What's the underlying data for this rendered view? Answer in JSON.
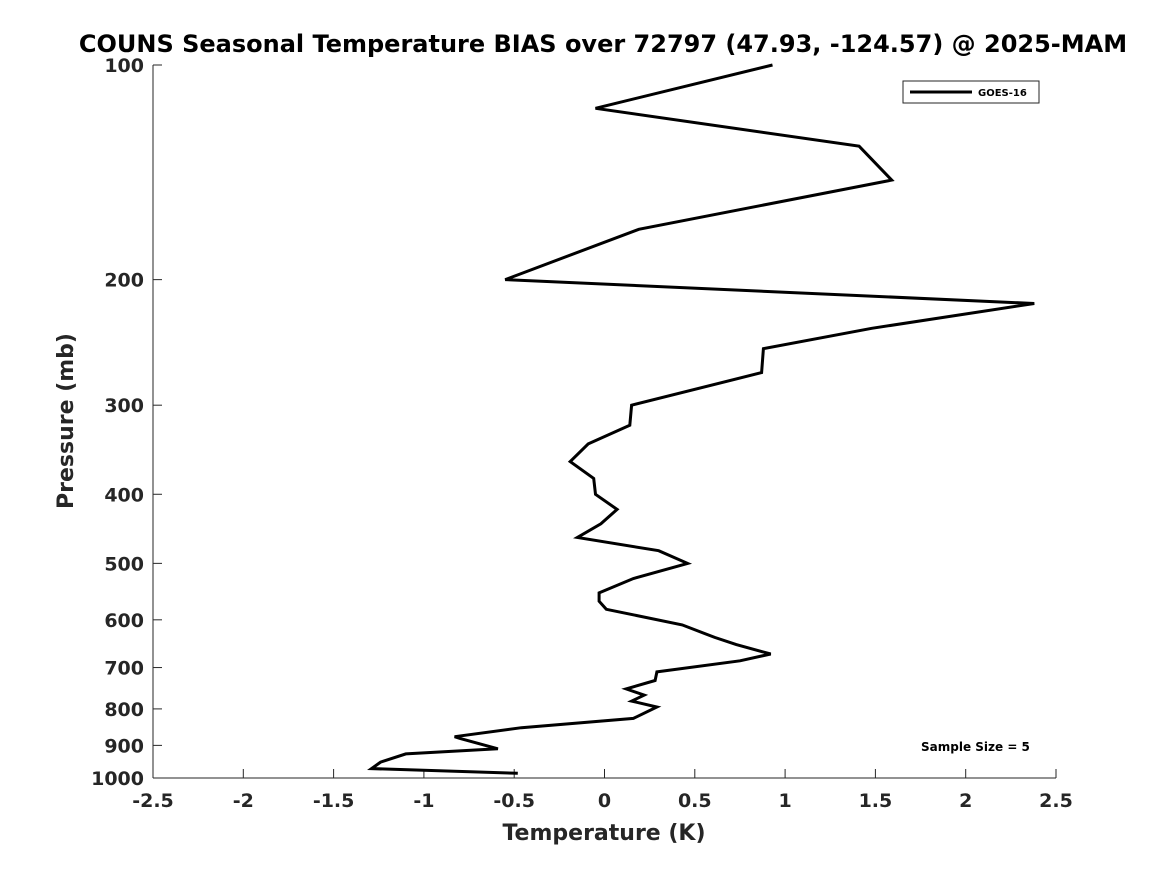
{
  "chart_data": {
    "type": "line",
    "title": "COUNS Seasonal Temperature BIAS over 72797 (47.93, -124.57) @ 2025-MAM",
    "xlabel": "Temperature (K)",
    "ylabel": "Pressure (mb)",
    "xlim": [
      -2.5,
      2.5
    ],
    "ylim": [
      100,
      1000
    ],
    "y_scale": "log",
    "y_reversed": true,
    "x_ticks": [
      "-2.5",
      "-2",
      "-1.5",
      "-1",
      "-0.5",
      "0",
      "0.5",
      "1",
      "1.5",
      "2",
      "2.5"
    ],
    "y_ticks": [
      "100",
      "200",
      "300",
      "400",
      "500",
      "600",
      "700",
      "800",
      "900",
      "1000"
    ],
    "grid": false,
    "legend_position": "top-right",
    "annotation": "Sample Size = 5",
    "series": [
      {
        "name": "GOES-16",
        "color": "#000000",
        "points": [
          [
            0.93,
            100
          ],
          [
            -0.05,
            115
          ],
          [
            1.41,
            130
          ],
          [
            1.59,
            145
          ],
          [
            0.19,
            170
          ],
          [
            -0.55,
            200
          ],
          [
            2.38,
            216
          ],
          [
            1.48,
            234
          ],
          [
            0.88,
            250
          ],
          [
            0.87,
            270
          ],
          [
            0.15,
            300
          ],
          [
            0.14,
            320
          ],
          [
            -0.09,
            340
          ],
          [
            -0.19,
            360
          ],
          [
            -0.06,
            380
          ],
          [
            -0.05,
            400
          ],
          [
            0.07,
            420
          ],
          [
            -0.02,
            440
          ],
          [
            -0.15,
            460
          ],
          [
            0.3,
            480
          ],
          [
            0.46,
            500
          ],
          [
            0.16,
            525
          ],
          [
            -0.03,
            550
          ],
          [
            -0.03,
            565
          ],
          [
            0.01,
            580
          ],
          [
            0.43,
            610
          ],
          [
            0.61,
            635
          ],
          [
            0.73,
            650
          ],
          [
            0.92,
            670
          ],
          [
            0.75,
            685
          ],
          [
            0.29,
            710
          ],
          [
            0.28,
            730
          ],
          [
            0.12,
            750
          ],
          [
            0.22,
            765
          ],
          [
            0.15,
            780
          ],
          [
            0.29,
            795
          ],
          [
            0.16,
            825
          ],
          [
            -0.46,
            850
          ],
          [
            -0.83,
            875
          ],
          [
            -0.8,
            880
          ],
          [
            -0.59,
            910
          ],
          [
            -1.1,
            925
          ],
          [
            -1.24,
            950
          ],
          [
            -1.29,
            970
          ],
          [
            -0.48,
            985
          ]
        ]
      }
    ]
  }
}
